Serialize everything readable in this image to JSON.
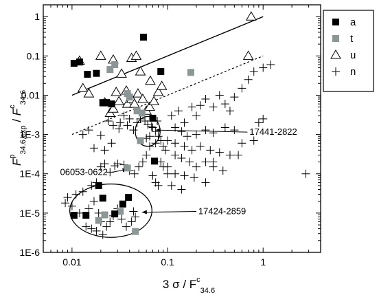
{
  "chart_data": {
    "type": "scatter",
    "x_scale": "log",
    "y_scale": "log",
    "xlim": [
      0.005,
      4
    ],
    "ylim": [
      1e-06,
      2
    ],
    "x_ticks": [
      {
        "value": 0.01,
        "label": "0.01"
      },
      {
        "value": 0.1,
        "label": "0.1"
      },
      {
        "value": 1,
        "label": "1"
      }
    ],
    "y_ticks": [
      {
        "value": 1,
        "label": "1"
      },
      {
        "value": 0.1,
        "label": "0.1"
      },
      {
        "value": 0.01,
        "label": "0.01"
      },
      {
        "value": 0.001,
        "label": "1E-3"
      },
      {
        "value": 0.0001,
        "label": "1E-4"
      },
      {
        "value": 1e-05,
        "label": "1E-5"
      },
      {
        "value": 1e-06,
        "label": "1E-6"
      }
    ],
    "xlabel": {
      "main": "3 σ / F",
      "sup": "c",
      "sub": "34.6"
    },
    "ylabel": {
      "main_top": "F",
      "sup_top": "p",
      "sub_top": "34.6,exp",
      "sep": " / ",
      "main_bot": "F",
      "sup_bot": "c",
      "sub_bot": "34.6"
    },
    "legend_position": "top-right",
    "grid": false,
    "series": [
      {
        "name": "a",
        "marker": "square",
        "color": "#000000",
        "points": [
          [
            0.0105,
            0.065
          ],
          [
            0.012,
            0.07
          ],
          [
            0.0145,
            0.034
          ],
          [
            0.018,
            0.036
          ],
          [
            0.021,
            0.0065
          ],
          [
            0.023,
            0.0065
          ],
          [
            0.026,
            0.006
          ],
          [
            0.056,
            0.3
          ],
          [
            0.085,
            0.04
          ],
          [
            0.07,
            0.0026
          ],
          [
            0.073,
            0.00021
          ],
          [
            0.0105,
            8.8e-06
          ],
          [
            0.014,
            8.8e-06
          ],
          [
            0.019,
            5e-05
          ],
          [
            0.021,
            2.4e-05
          ],
          [
            0.028,
            9.5e-06
          ],
          [
            0.034,
            1.7e-05
          ],
          [
            0.039,
            2.5e-05
          ]
        ]
      },
      {
        "name": "t",
        "marker": "square",
        "color": "#8c9696",
        "points": [
          [
            0.025,
            0.045
          ],
          [
            0.028,
            0.06
          ],
          [
            0.038,
            0.011
          ],
          [
            0.04,
            0.009
          ],
          [
            0.048,
            0.004
          ],
          [
            0.054,
            0.0035
          ],
          [
            0.052,
            0.0007
          ],
          [
            0.038,
            0.00014
          ],
          [
            0.175,
            0.038
          ],
          [
            0.019,
            6.5e-06
          ],
          [
            0.022,
            9e-06
          ],
          [
            0.032,
            1.1e-05
          ],
          [
            0.046,
            3.4e-06
          ]
        ]
      },
      {
        "name": "u",
        "marker": "triangle",
        "color": "#000000",
        "points": [
          [
            0.012,
            0.075
          ],
          [
            0.02,
            0.1
          ],
          [
            0.027,
            0.08
          ],
          [
            0.033,
            0.035
          ],
          [
            0.042,
            0.088
          ],
          [
            0.047,
            0.1
          ],
          [
            0.052,
            0.04
          ],
          [
            0.013,
            0.015
          ],
          [
            0.015,
            0.011
          ],
          [
            0.022,
            0.0065
          ],
          [
            0.025,
            0.0035
          ],
          [
            0.027,
            0.0045
          ],
          [
            0.029,
            0.012
          ],
          [
            0.031,
            0.007
          ],
          [
            0.037,
            0.013
          ],
          [
            0.038,
            0.006
          ],
          [
            0.042,
            0.008
          ],
          [
            0.045,
            0.006
          ],
          [
            0.049,
            0.011
          ],
          [
            0.055,
            0.008
          ],
          [
            0.06,
            0.004
          ],
          [
            0.065,
            0.005
          ],
          [
            0.072,
            0.007
          ],
          [
            0.08,
            0.012
          ],
          [
            0.066,
            0.023
          ],
          [
            0.087,
            0.017
          ],
          [
            0.7,
            0.1
          ],
          [
            0.75,
            1.0
          ]
        ]
      },
      {
        "name": "n",
        "marker": "plus",
        "color": "#000000",
        "points": [
          [
            0.11,
            0.003
          ],
          [
            0.13,
            0.004
          ],
          [
            0.15,
            0.002
          ],
          [
            0.18,
            0.005
          ],
          [
            0.2,
            0.003
          ],
          [
            0.22,
            0.0055
          ],
          [
            0.25,
            0.008
          ],
          [
            0.3,
            0.005
          ],
          [
            0.35,
            0.01
          ],
          [
            0.4,
            0.006
          ],
          [
            0.45,
            0.004
          ],
          [
            0.5,
            0.009
          ],
          [
            0.6,
            0.015
          ],
          [
            0.7,
            0.025
          ],
          [
            0.8,
            0.04
          ],
          [
            1.0,
            0.05
          ],
          [
            1.2,
            0.06
          ],
          [
            0.12,
            0.0015
          ],
          [
            0.14,
            0.0012
          ],
          [
            0.16,
            0.0009
          ],
          [
            0.2,
            0.001
          ],
          [
            0.25,
            0.0013
          ],
          [
            0.3,
            0.0011
          ],
          [
            0.4,
            0.0015
          ],
          [
            0.5,
            0.0013
          ],
          [
            0.6,
            0.0006
          ],
          [
            0.8,
            0.0007
          ],
          [
            1.0,
            0.0025
          ],
          [
            0.9,
            0.002
          ],
          [
            0.1,
            0.0007
          ],
          [
            0.12,
            0.0006
          ],
          [
            0.15,
            0.0005
          ],
          [
            0.18,
            0.0004
          ],
          [
            0.22,
            0.0005
          ],
          [
            0.28,
            0.0004
          ],
          [
            0.35,
            0.00035
          ],
          [
            0.45,
            0.0003
          ],
          [
            0.55,
            0.0003
          ],
          [
            0.12,
            0.0003
          ],
          [
            0.14,
            0.00025
          ],
          [
            0.17,
            0.0002
          ],
          [
            0.2,
            0.00015
          ],
          [
            0.25,
            0.0002
          ],
          [
            0.3,
            0.00015
          ],
          [
            0.38,
            0.00012
          ],
          [
            0.1,
            0.00015
          ],
          [
            0.12,
            0.0001
          ],
          [
            0.15,
            9e-05
          ],
          [
            0.19,
            8e-05
          ],
          [
            0.25,
            6e-05
          ],
          [
            0.11,
            5e-05
          ],
          [
            0.14,
            4e-05
          ],
          [
            0.07,
            0.0015
          ],
          [
            0.075,
            0.0012
          ],
          [
            0.08,
            0.0009
          ],
          [
            0.085,
            0.0007
          ],
          [
            0.09,
            0.0005
          ],
          [
            0.095,
            0.0004
          ],
          [
            0.065,
            0.0005
          ],
          [
            0.06,
            0.0003
          ],
          [
            0.055,
            0.0002
          ],
          [
            0.05,
            0.00015
          ],
          [
            0.045,
            0.0001
          ],
          [
            0.04,
            0.00012
          ],
          [
            0.035,
            0.00017
          ],
          [
            0.03,
            0.00018
          ],
          [
            0.028,
            0.00016
          ],
          [
            0.025,
            0.00011
          ],
          [
            0.022,
            0.00018
          ],
          [
            0.02,
            0.00015
          ],
          [
            0.018,
            6e-05
          ],
          [
            0.016,
            5e-05
          ],
          [
            0.013,
            3.5e-05
          ],
          [
            0.011,
            3e-05
          ],
          [
            0.009,
            2.5e-05
          ],
          [
            0.0085,
            1.8e-05
          ],
          [
            0.01,
            1.5e-05
          ],
          [
            0.012,
            1e-05
          ],
          [
            0.015,
            1.3e-05
          ],
          [
            0.017,
            2e-05
          ],
          [
            0.019,
            1e-05
          ],
          [
            0.02,
            6e-06
          ],
          [
            0.023,
            4.5e-06
          ],
          [
            0.025,
            6e-06
          ],
          [
            0.027,
            8.5e-06
          ],
          [
            0.03,
            1.3e-05
          ],
          [
            0.033,
            7e-06
          ],
          [
            0.037,
            4.5e-06
          ],
          [
            0.042,
            6e-06
          ],
          [
            0.044,
            1.1e-05
          ],
          [
            0.046,
            8e-06
          ],
          [
            0.014,
            4.5e-06
          ],
          [
            0.016,
            4e-06
          ],
          [
            0.018,
            3.5e-06
          ],
          [
            0.021,
            2.8e-06
          ],
          [
            0.048,
            0.002
          ],
          [
            0.052,
            0.0025
          ],
          [
            0.058,
            0.0022
          ],
          [
            0.062,
            0.0018
          ],
          [
            0.068,
            0.0016
          ],
          [
            0.078,
            0.0022
          ],
          [
            0.065,
            0.0009
          ],
          [
            0.075,
            0.0006
          ],
          [
            0.06,
            0.0008
          ],
          [
            0.032,
            0.002
          ],
          [
            0.035,
            0.003
          ],
          [
            0.04,
            0.0025
          ],
          [
            0.038,
            0.0017
          ],
          [
            0.044,
            0.0013
          ],
          [
            0.024,
            0.0022
          ],
          [
            0.027,
            0.0017
          ],
          [
            0.031,
            0.0014
          ],
          [
            0.013,
            0.001
          ],
          [
            0.015,
            0.0013
          ],
          [
            0.02,
            0.00095
          ],
          [
            0.017,
            0.00045
          ],
          [
            0.022,
            0.0004
          ],
          [
            0.026,
            0.0006
          ],
          [
            0.085,
            0.0002
          ],
          [
            0.09,
            0.00015
          ],
          [
            0.1,
            0.0001
          ],
          [
            2.8,
            0.0001
          ],
          [
            0.3,
            0.0002
          ],
          [
            0.07,
            9e-05
          ],
          [
            0.075,
            6e-05
          ],
          [
            0.08,
            5e-05
          ]
        ]
      }
    ],
    "reference_lines": [
      {
        "style": "solid",
        "x": [
          0.01,
          1.0
        ],
        "y": [
          0.01,
          1.0
        ]
      },
      {
        "style": "dashed",
        "x": [
          0.01,
          1.0
        ],
        "y": [
          0.001,
          0.1
        ]
      }
    ],
    "annotations": [
      {
        "label": "17441-2822",
        "text_at": [
          0.72,
          0.00115
        ],
        "arrow_to": [
          0.075,
          0.0013
        ]
      },
      {
        "label": "06053-0622",
        "text_at": [
          0.0075,
          0.00011
        ],
        "arrow_to": [
          0.038,
          0.00013
        ]
      },
      {
        "label": "17424-2859",
        "text_at": [
          0.21,
          1.1e-05
        ],
        "arrow_to": [
          0.054,
          1.05e-05
        ]
      }
    ],
    "ellipses": [
      {
        "cx": 0.0255,
        "cy": 1.15e-05,
        "rx_decades": 0.43,
        "ry_decades": 0.68
      },
      {
        "cx": 0.062,
        "cy": 0.0012,
        "rx_decades": 0.13,
        "ry_decades": 0.38
      }
    ]
  }
}
